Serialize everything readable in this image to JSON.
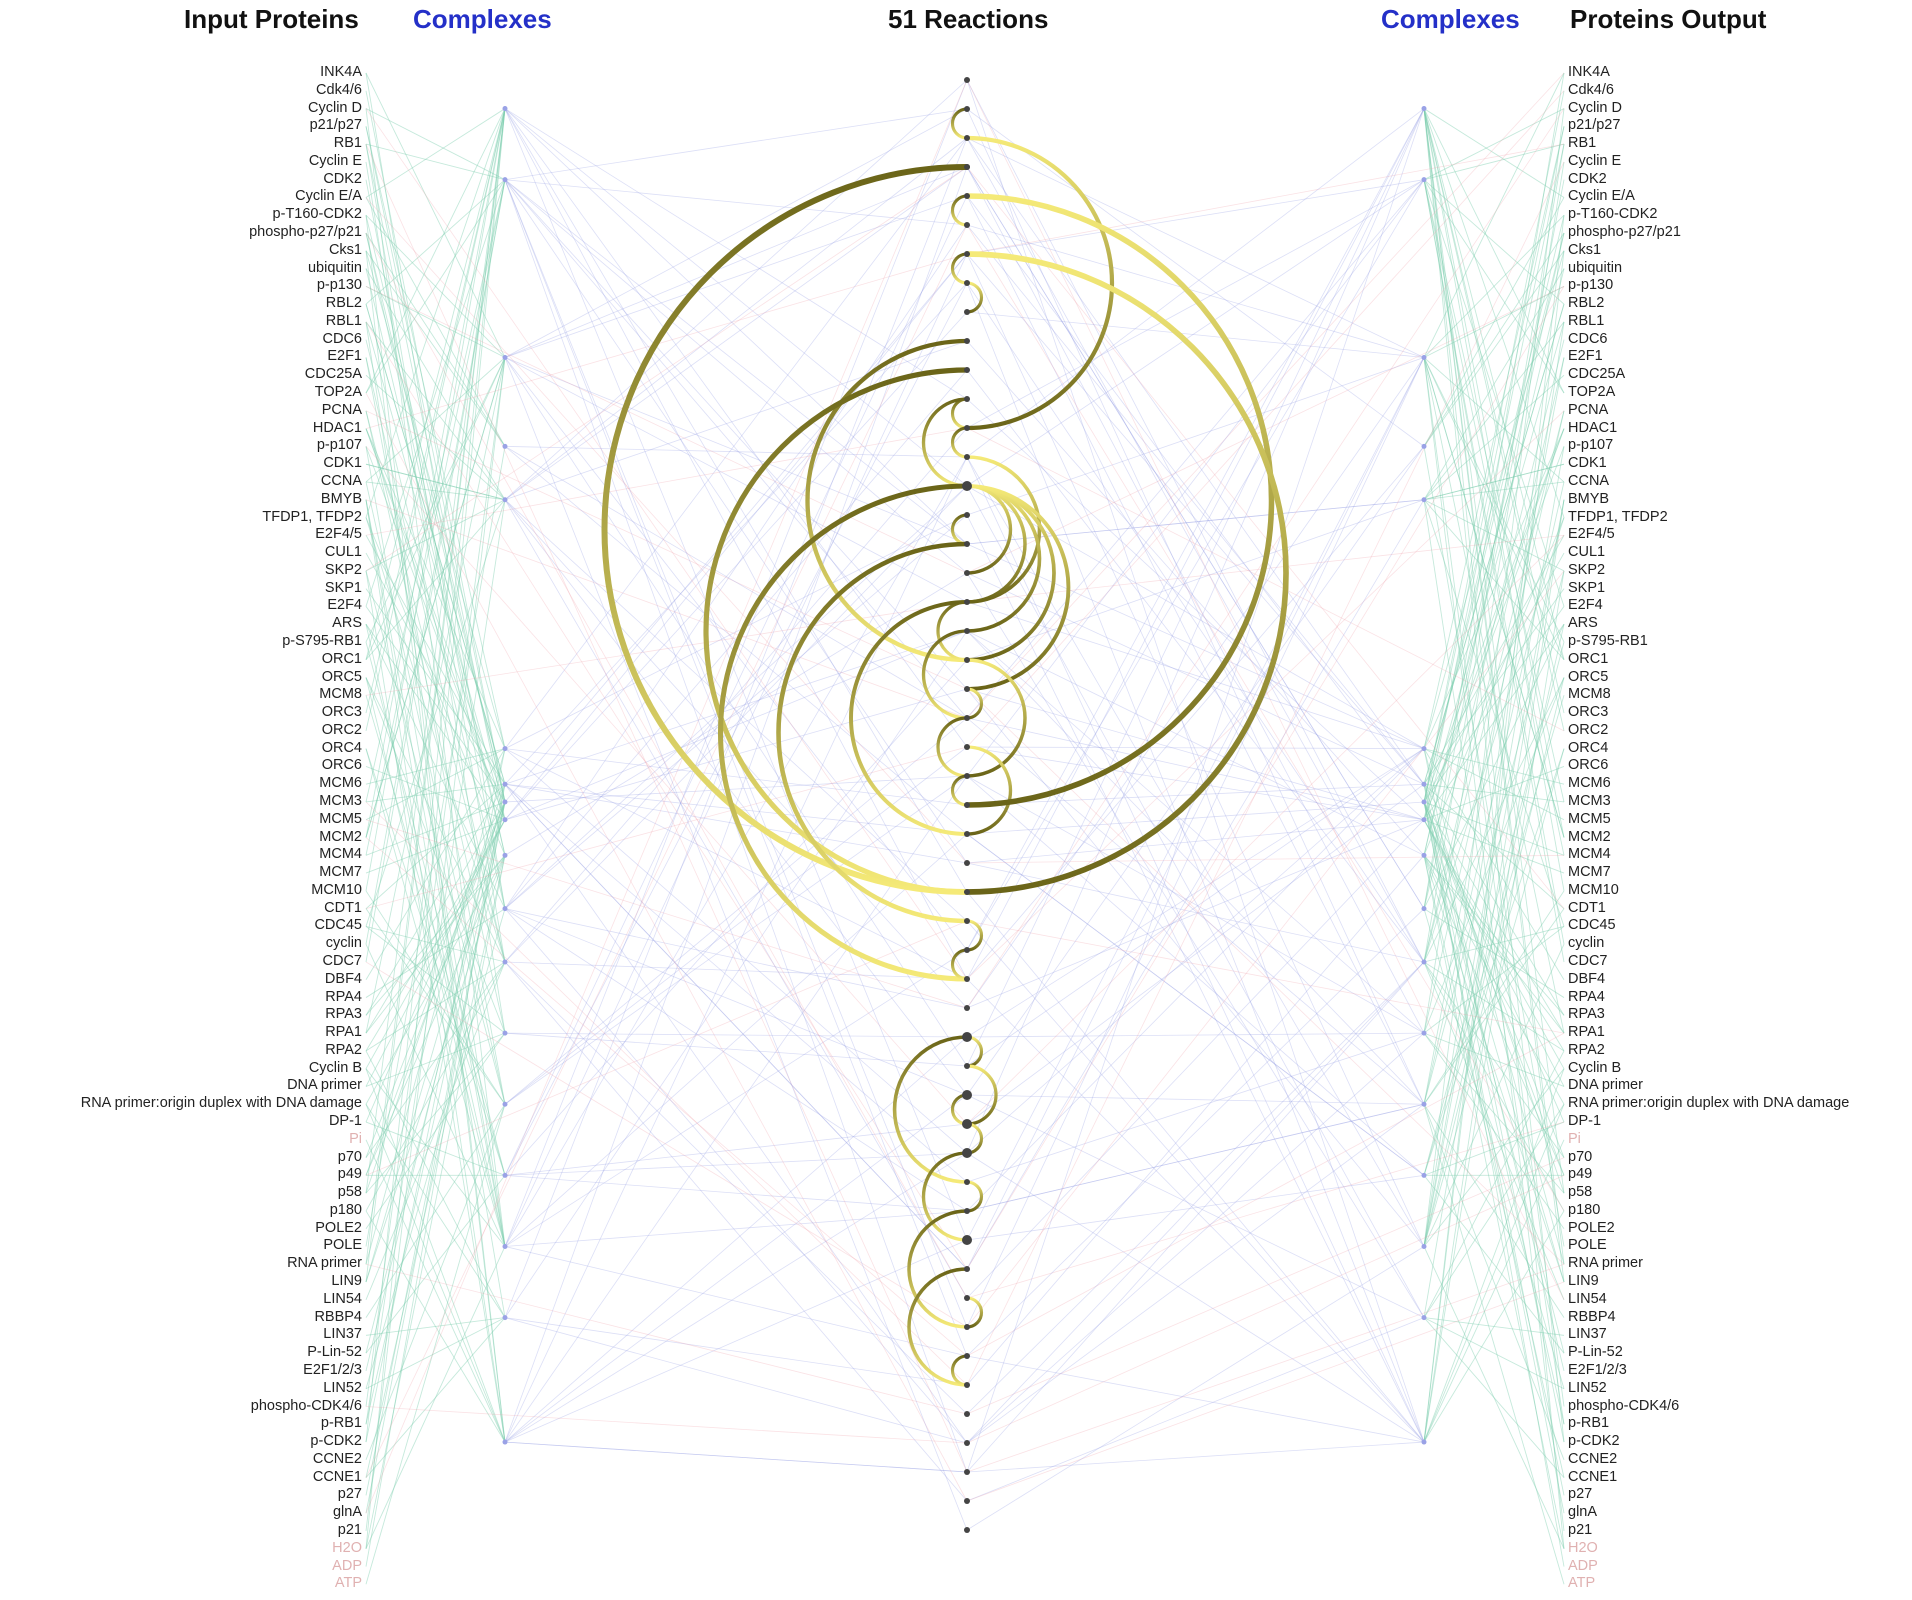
{
  "headers": {
    "input_proteins": "Input Proteins",
    "complexes_left": "Complexes",
    "reactions": "51 Reactions",
    "complexes_right": "Complexes",
    "proteins_output": "Proteins Output"
  },
  "colors": {
    "header_blue": "#2430c8",
    "header_dark": "#111111",
    "label_text": "#222222",
    "faded_label": "#e0b1b1",
    "link_green": "#7fcfb0",
    "link_blue": "#9aa2e6",
    "link_red": "#f0a0a8",
    "arc_light": "#f5ea78",
    "arc_dark": "#6a6418",
    "node": "#444444"
  },
  "reactions_count": 51,
  "proteins": [
    "INK4A",
    "Cdk4/6",
    "Cyclin D",
    "p21/p27",
    "RB1",
    "Cyclin E",
    "CDK2",
    "Cyclin E/A",
    "p-T160-CDK2",
    "phospho-p27/p21",
    "Cks1",
    "ubiquitin",
    "p-p130",
    "RBL2",
    "RBL1",
    "CDC6",
    "E2F1",
    "CDC25A",
    "TOP2A",
    "PCNA",
    "HDAC1",
    "p-p107",
    "CDK1",
    "CCNA",
    "BMYB",
    "TFDP1, TFDP2",
    "E2F4/5",
    "CUL1",
    "SKP2",
    "SKP1",
    "E2F4",
    "ARS",
    "p-S795-RB1",
    "ORC1",
    "ORC5",
    "MCM8",
    "ORC3",
    "ORC2",
    "ORC4",
    "ORC6",
    "MCM6",
    "MCM3",
    "MCM5",
    "MCM2",
    "MCM4",
    "MCM7",
    "MCM10",
    "CDT1",
    "CDC45",
    "cyclin",
    "CDC7",
    "DBF4",
    "RPA4",
    "RPA3",
    "RPA1",
    "RPA2",
    "Cyclin B",
    "DNA primer",
    "RNA primer:origin duplex with DNA damage",
    "DP-1",
    "Pi",
    "p70",
    "p49",
    "p58",
    "p180",
    "POLE2",
    "POLE",
    "RNA primer",
    "LIN9",
    "LIN54",
    "RBBP4",
    "LIN37",
    "P-Lin-52",
    "E2F1/2/3",
    "LIN52",
    "phospho-CDK4/6",
    "p-RB1",
    "p-CDK2",
    "CCNE2",
    "CCNE1",
    "p27",
    "glnA",
    "p21",
    "H2O",
    "ADP",
    "ATP"
  ],
  "faded_proteins": [
    "Pi",
    "H2O",
    "ADP",
    "ATP"
  ]
}
